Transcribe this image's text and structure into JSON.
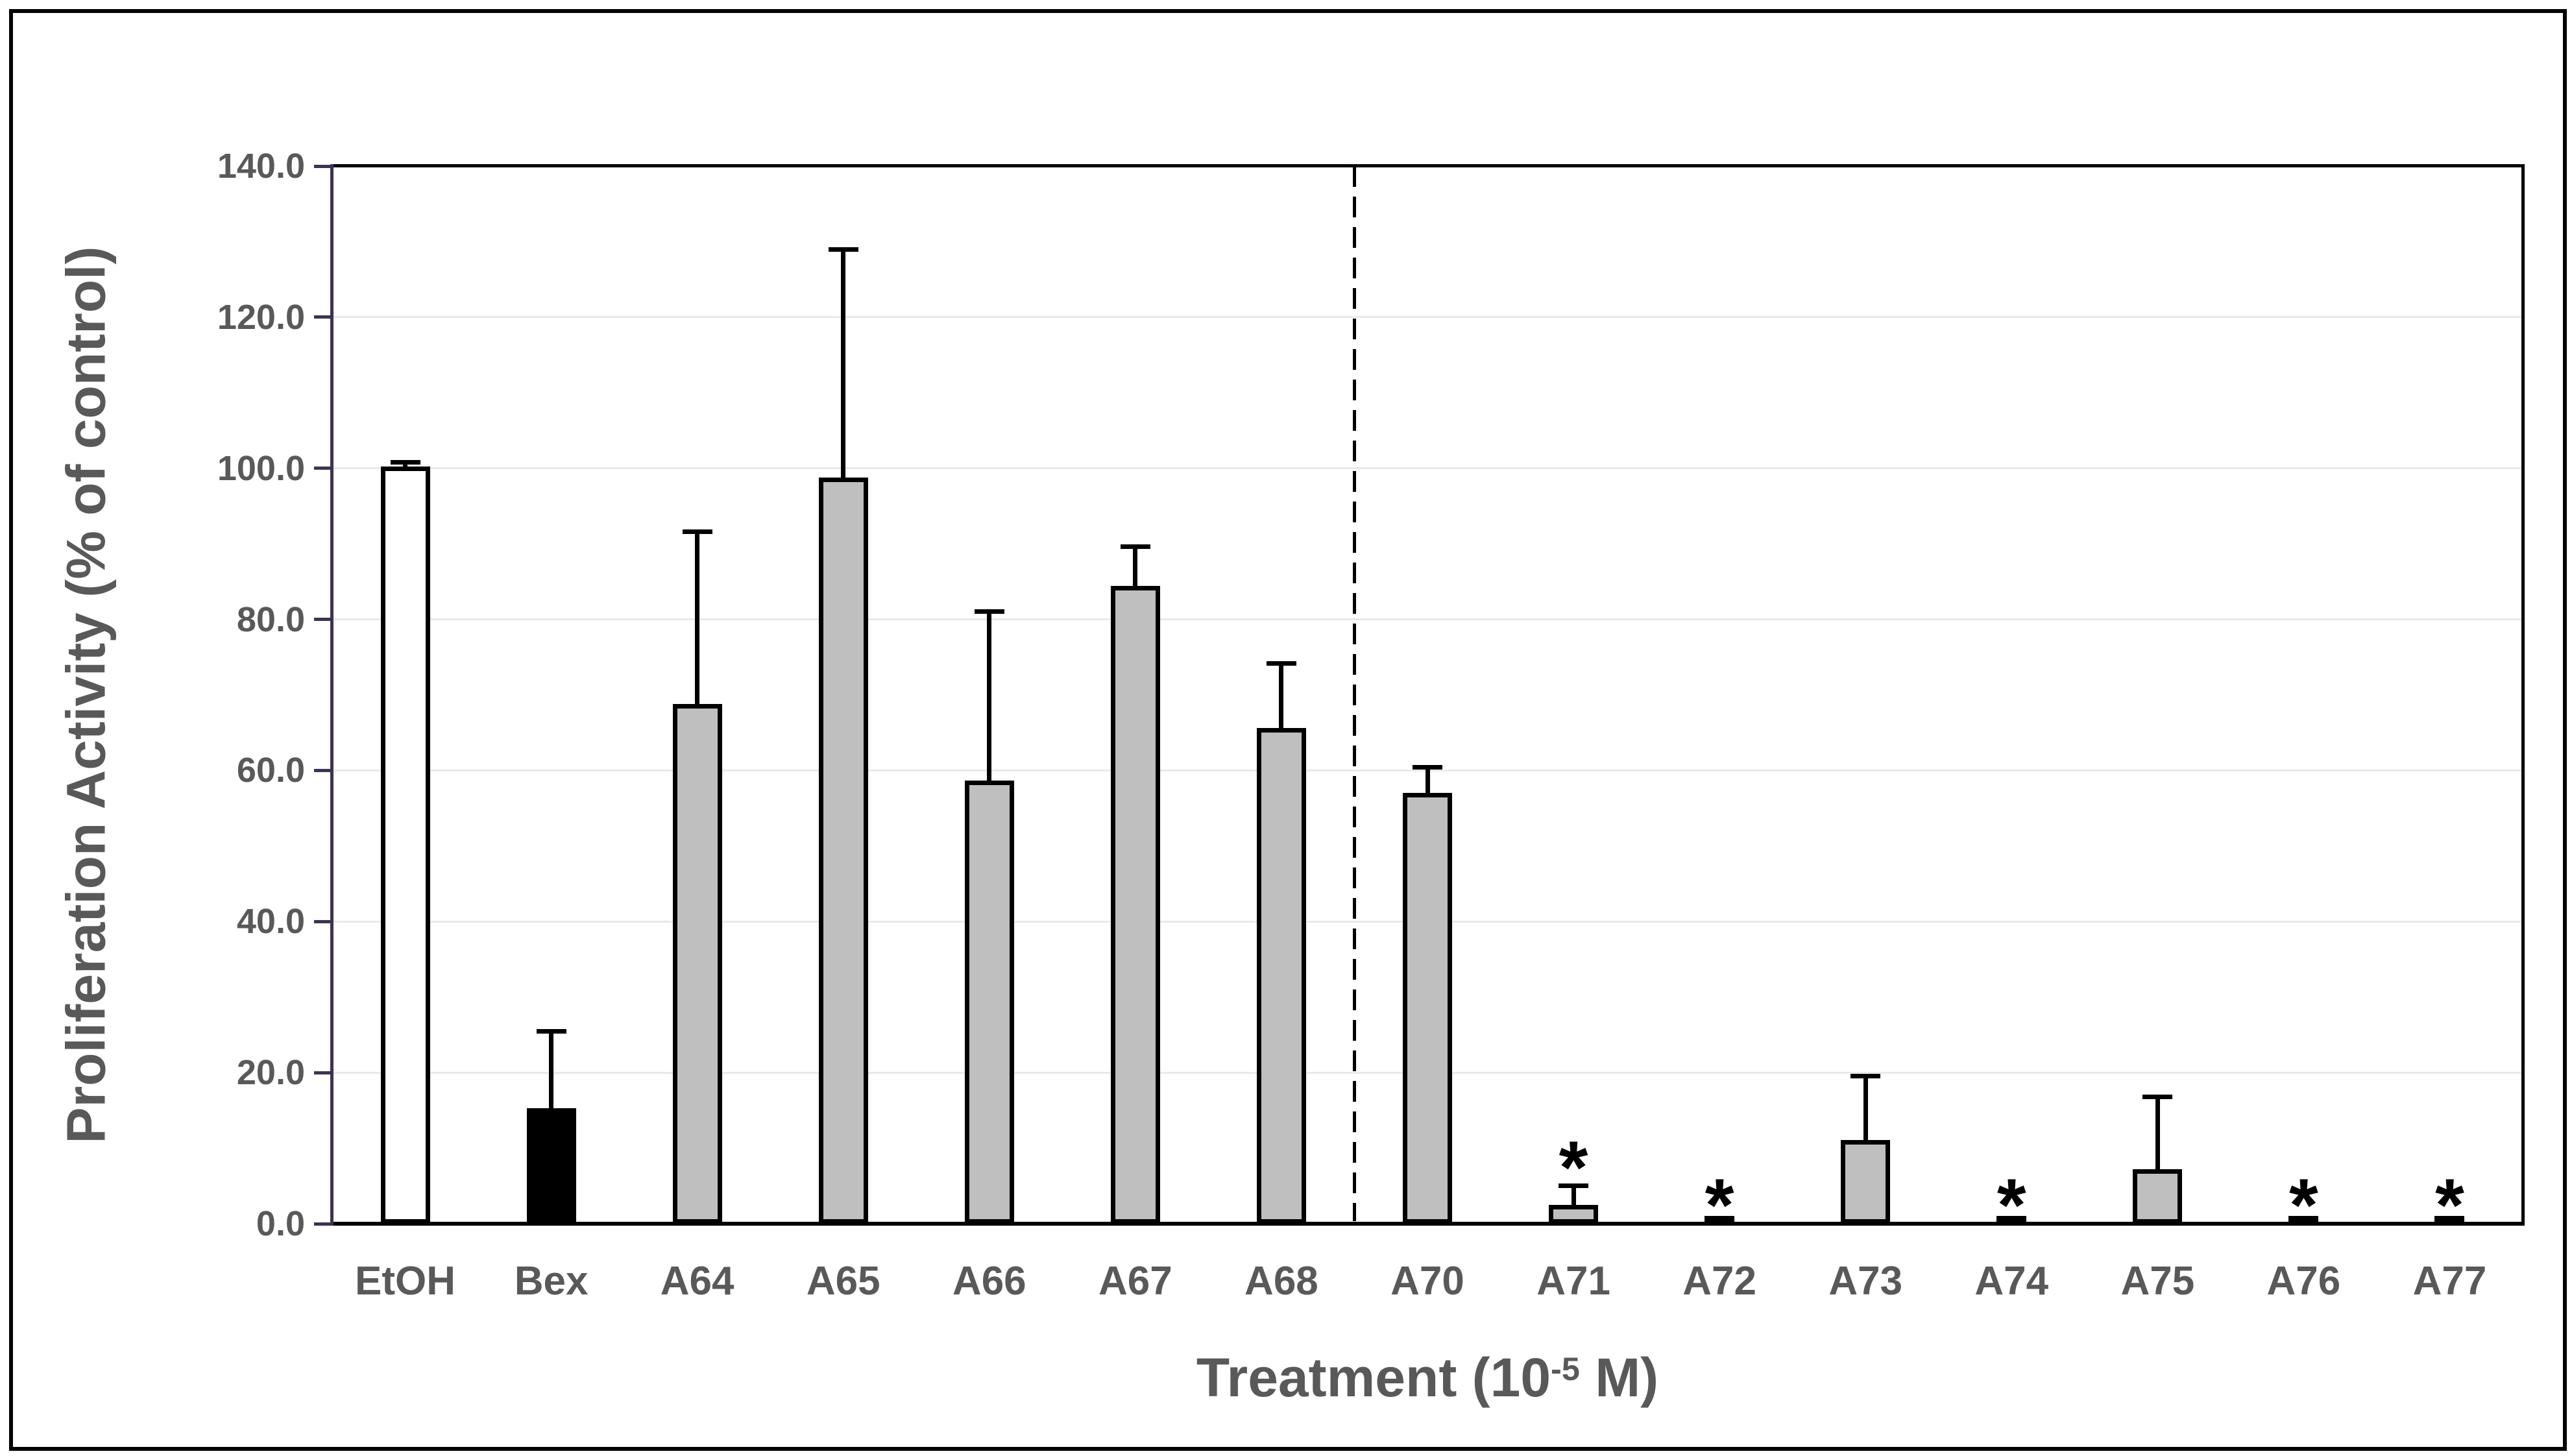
{
  "chart_data": {
    "type": "bar",
    "title": "",
    "xlabel": "Treatment (10^-5 M)",
    "ylabel": "Proliferation Activity (% of control)",
    "categories": [
      "EtOH",
      "Bex",
      "A64",
      "A65",
      "A66",
      "A67",
      "A68",
      "A70",
      "A71",
      "A72",
      "A73",
      "A74",
      "A75",
      "A76",
      "A77"
    ],
    "values": [
      100.0,
      15.0,
      68.5,
      98.5,
      58.4,
      84.2,
      65.4,
      56.8,
      2.2,
      0.3,
      10.8,
      0.3,
      7.0,
      0.3,
      0.3
    ],
    "error_upper": [
      100.8,
      25.5,
      91.6,
      129.0,
      81.0,
      89.6,
      74.2,
      60.4,
      5.0,
      null,
      19.5,
      null,
      16.8,
      null,
      null
    ],
    "significant": [
      false,
      false,
      false,
      false,
      false,
      false,
      false,
      false,
      true,
      true,
      false,
      true,
      false,
      true,
      true
    ],
    "significance_marker": "*",
    "bar_fills": [
      "#ffffff",
      "#000000",
      "#bfbfbf",
      "#bfbfbf",
      "#bfbfbf",
      "#bfbfbf",
      "#bfbfbf",
      "#bfbfbf",
      "#bfbfbf",
      "#000000",
      "#bfbfbf",
      "#000000",
      "#bfbfbf",
      "#000000",
      "#000000"
    ],
    "ylim": [
      0,
      140
    ],
    "ytick_step": 20,
    "ytick_labels": [
      "0.0",
      "20.0",
      "40.0",
      "60.0",
      "80.0",
      "100.0",
      "120.0",
      "140.0"
    ],
    "grid": true,
    "legend": false,
    "divider_after_index": 6,
    "divider_style": "dashed"
  },
  "axis": {
    "y_title": "Proliferation Activity (% of control)",
    "x_title_prefix": "Treatment (10",
    "x_title_sup": "-5",
    "x_title_suffix": " M)"
  },
  "style": {
    "background": "#ffffff",
    "outer_border_color": "#000000",
    "plot_border_color": "#000000",
    "axis_line_color": "#3e3252",
    "gridline_color": "#e9e9e9",
    "label_color": "#595959",
    "bar_outline_color": "#000000",
    "error_bar_color": "#000000"
  }
}
